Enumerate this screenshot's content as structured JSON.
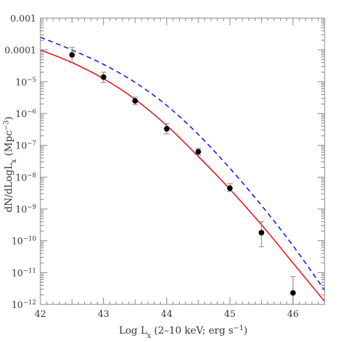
{
  "chart_data": {
    "type": "scatter",
    "xlabel": "Log L",
    "xlabel_sub": "x",
    "xlabel_rest": " (2–10 keV; erg s",
    "xlabel_sup": "−1",
    "xlabel_end": ")",
    "ylabel": "dN/dLogL",
    "ylabel_sub": "x",
    "ylabel_rest": " (Mpc",
    "ylabel_sup": "−3",
    "ylabel_end": ")",
    "xlim": [
      42,
      46.5
    ],
    "ylim": [
      1e-12,
      0.001
    ],
    "yscale": "log",
    "grid": false,
    "x_ticks": [
      {
        "value": 42,
        "label": "42"
      },
      {
        "value": 43,
        "label": "43"
      },
      {
        "value": 44,
        "label": "44"
      },
      {
        "value": 45,
        "label": "45"
      },
      {
        "value": 46,
        "label": "46"
      }
    ],
    "y_ticks": [
      {
        "value": 0.001,
        "base": "0.001",
        "exp": ""
      },
      {
        "value": 0.0001,
        "base": "0.0001",
        "exp": ""
      },
      {
        "value": 1e-05,
        "base": "10",
        "exp": "−5"
      },
      {
        "value": 1e-06,
        "base": "10",
        "exp": "−6"
      },
      {
        "value": 1e-07,
        "base": "10",
        "exp": "−7"
      },
      {
        "value": 1e-08,
        "base": "10",
        "exp": "−8"
      },
      {
        "value": 1e-09,
        "base": "10",
        "exp": "−9"
      },
      {
        "value": 1e-10,
        "base": "10",
        "exp": "−10"
      },
      {
        "value": 1e-11,
        "base": "10",
        "exp": "−11"
      },
      {
        "value": 1e-12,
        "base": "10",
        "exp": "−12"
      }
    ],
    "points": [
      {
        "x": 42.5,
        "y": 7e-05,
        "ylo": 4e-05,
        "yhi": 0.00012
      },
      {
        "x": 43.0,
        "y": 1.4e-05,
        "ylo": 9.5e-06,
        "yhi": 2e-05
      },
      {
        "x": 43.5,
        "y": 2.5e-06,
        "ylo": 1.9e-06,
        "yhi": 3.3e-06
      },
      {
        "x": 44.0,
        "y": 3.3e-07,
        "ylo": 2.3e-07,
        "yhi": 4.8e-07
      },
      {
        "x": 44.5,
        "y": 6.3e-08,
        "ylo": 5e-08,
        "yhi": 8e-08
      },
      {
        "x": 45.0,
        "y": 4.5e-09,
        "ylo": 3.6e-09,
        "yhi": 6.2e-09
      },
      {
        "x": 45.5,
        "y": 1.8e-10,
        "ylo": 6.5e-11,
        "yhi": 4e-10
      },
      {
        "x": 46.0,
        "y": 2.3e-12,
        "ylo": 1e-12,
        "yhi": 7.5e-12
      }
    ],
    "series": [
      {
        "style": "solid",
        "color": "#e8141b",
        "x": [
          42.0,
          42.5,
          43.0,
          43.5,
          44.0,
          44.5,
          45.0,
          45.5,
          46.0,
          46.5
        ],
        "y": [
          0.0001,
          4e-05,
          1.25e-05,
          2.8e-06,
          4.2e-07,
          4.5e-08,
          4.2e-09,
          3.2e-10,
          2e-11,
          1.25e-12
        ]
      },
      {
        "style": "dashed",
        "color": "#1414e6",
        "x": [
          42.0,
          42.5,
          43.0,
          43.5,
          44.0,
          44.5,
          45.0,
          45.5,
          46.0,
          46.5
        ],
        "y": [
          0.00025,
          0.0001,
          3.5e-05,
          9.5e-06,
          1.8e-06,
          2.2e-07,
          1.9e-08,
          1.3e-09,
          7e-11,
          2.8e-12
        ]
      }
    ],
    "marker_color": "#000000",
    "errorbar_color": "#7f7f7f",
    "axis_color": "#808080"
  }
}
